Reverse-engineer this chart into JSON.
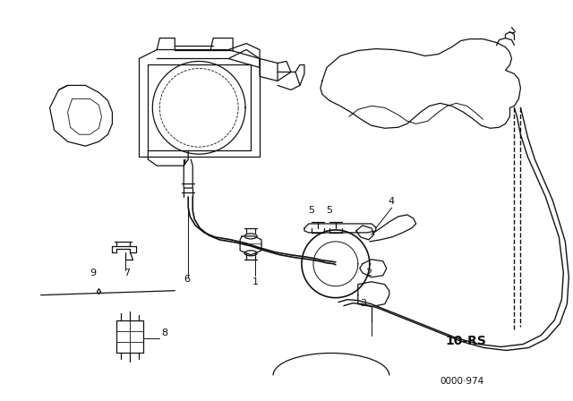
{
  "background_color": "#ffffff",
  "line_color": "#111111",
  "diagram_label": "10-RS",
  "catalog_num": "0000·974",
  "fig_width": 6.4,
  "fig_height": 4.48,
  "dpi": 100,
  "border_color": "#cccccc"
}
